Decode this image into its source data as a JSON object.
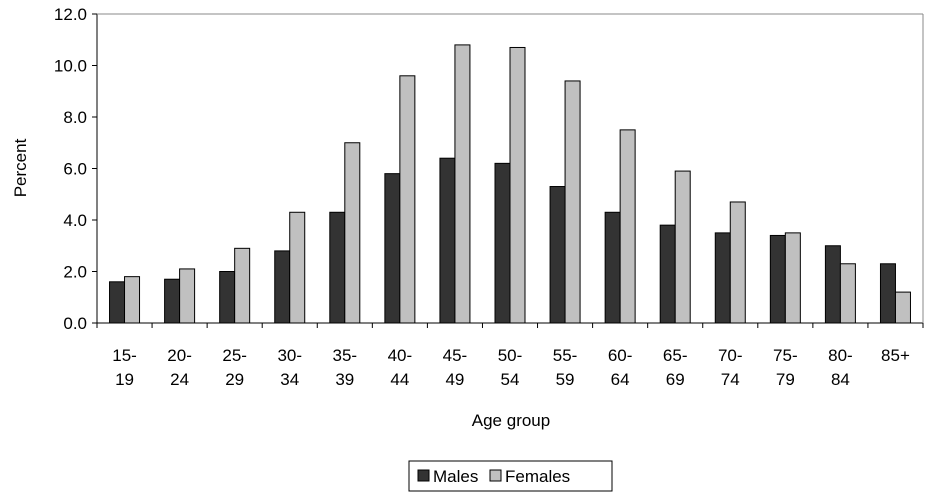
{
  "chart_data": {
    "type": "bar",
    "xlabel": "Age group",
    "ylabel": "Percent",
    "ylim": [
      0,
      12
    ],
    "yticks": [
      "0.0",
      "2.0",
      "4.0",
      "6.0",
      "8.0",
      "10.0",
      "12.0"
    ],
    "ytick_values": [
      0,
      2,
      4,
      6,
      8,
      10,
      12
    ],
    "grid": false,
    "legend_position": "bottom-center",
    "categories": [
      [
        "15-",
        "19"
      ],
      [
        "20-",
        "24"
      ],
      [
        "25-",
        "29"
      ],
      [
        "30-",
        "34"
      ],
      [
        "35-",
        "39"
      ],
      [
        "40-",
        "44"
      ],
      [
        "45-",
        "49"
      ],
      [
        "50-",
        "54"
      ],
      [
        "55-",
        "59"
      ],
      [
        "60-",
        "64"
      ],
      [
        "65-",
        "69"
      ],
      [
        "70-",
        "74"
      ],
      [
        "75-",
        "79"
      ],
      [
        "80-",
        "84"
      ],
      [
        "85+"
      ]
    ],
    "series": [
      {
        "name": "Males",
        "color": "#333333",
        "values": [
          1.6,
          1.7,
          2.0,
          2.8,
          4.3,
          5.8,
          6.4,
          6.2,
          5.3,
          4.3,
          3.8,
          3.5,
          3.4,
          3.0,
          2.3
        ]
      },
      {
        "name": "Females",
        "color": "#c0c0c0",
        "values": [
          1.8,
          2.1,
          2.9,
          4.3,
          7.0,
          9.6,
          10.8,
          10.7,
          9.4,
          7.5,
          5.9,
          4.7,
          3.5,
          2.3,
          1.2
        ]
      }
    ]
  }
}
